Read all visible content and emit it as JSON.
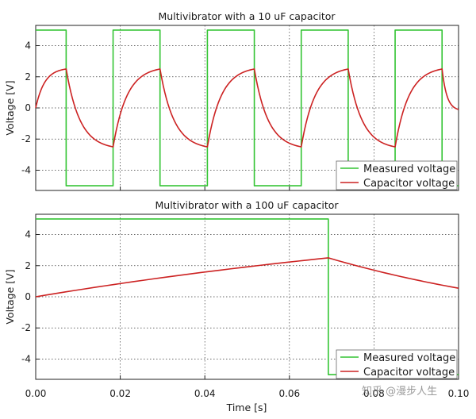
{
  "colors": {
    "measured": "#33c433",
    "capacitor": "#cc2222",
    "grid": "#3a3a3a",
    "frame": "#222222"
  },
  "watermark": "知乎 @漫步人生",
  "chart_data": [
    {
      "type": "line",
      "title": "Multivibrator with a 10 uF capacitor",
      "xlabel": "",
      "ylabel": "Voltage [V]",
      "xlim": [
        0,
        0.1
      ],
      "ylim": [
        -5.3,
        5.3
      ],
      "yticks": [
        -4,
        -2,
        0,
        2,
        4
      ],
      "yticklabels": [
        "-4",
        "-2",
        "0",
        "2",
        "4"
      ],
      "xticks": [
        0,
        0.02,
        0.04,
        0.06,
        0.08,
        0.1
      ],
      "grid": true,
      "legend": "bottom-right",
      "series": [
        {
          "name": "Measured voltage",
          "style": "step",
          "x": [
            0,
            0.0072,
            0.0072,
            0.0183,
            0.0183,
            0.0294,
            0.0294,
            0.0406,
            0.0406,
            0.0517,
            0.0517,
            0.0628,
            0.0628,
            0.0739,
            0.0739,
            0.085,
            0.085,
            0.0961,
            0.0961,
            0.1
          ],
          "y": [
            5,
            5,
            -5,
            -5,
            5,
            5,
            -5,
            -5,
            5,
            5,
            -5,
            -5,
            5,
            5,
            -5,
            -5,
            5,
            5,
            -5,
            -5
          ]
        },
        {
          "name": "Capacitor voltage",
          "style": "rc",
          "x": [
            0,
            0.0072,
            0.0183,
            0.0294,
            0.0406,
            0.0517,
            0.0628,
            0.0739,
            0.085,
            0.0961,
            0.1
          ],
          "y": [
            0,
            2.5,
            -2.5,
            2.5,
            -2.5,
            2.5,
            -2.5,
            2.5,
            -2.5,
            2.5,
            -0.1
          ],
          "curvature": 0.85
        }
      ]
    },
    {
      "type": "line",
      "title": "Multivibrator with a 100 uF capacitor",
      "xlabel": "Time [s]",
      "ylabel": "Voltage [V]",
      "xlim": [
        0,
        0.1
      ],
      "ylim": [
        -5.3,
        5.3
      ],
      "yticks": [
        -4,
        -2,
        0,
        2,
        4
      ],
      "yticklabels": [
        "-4",
        "-2",
        "0",
        "2",
        "4"
      ],
      "xticks": [
        0,
        0.02,
        0.04,
        0.06,
        0.08,
        0.1
      ],
      "xticklabels": [
        "0.00",
        "0.02",
        "0.04",
        "0.06",
        "0.08",
        "0.10"
      ],
      "grid": true,
      "legend": "bottom-right",
      "series": [
        {
          "name": "Measured voltage",
          "style": "step",
          "x": [
            0,
            0.0692,
            0.0692,
            0.1
          ],
          "y": [
            5,
            5,
            -5,
            -5
          ]
        },
        {
          "name": "Capacitor voltage",
          "style": "rc",
          "x": [
            0,
            0.0692,
            0.1
          ],
          "y": [
            0,
            2.5,
            0.55
          ],
          "curvature": 0.12
        }
      ]
    }
  ]
}
